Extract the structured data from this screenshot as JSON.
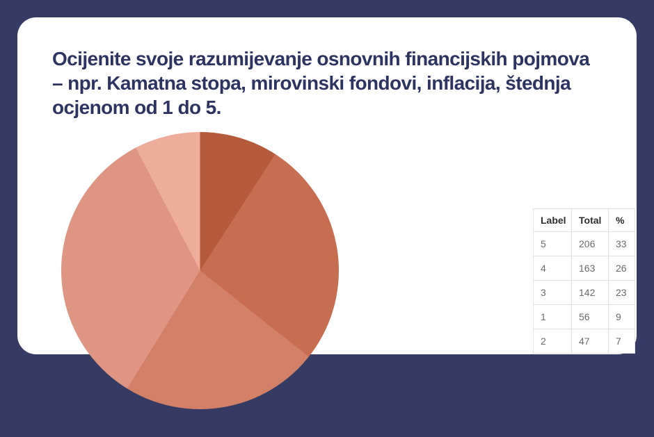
{
  "colors": {
    "background": "#353b63",
    "card": "#ffffff",
    "title_text": "#2d3462",
    "table_border": "#e2e2e2",
    "table_header_text": "#2e2e2e",
    "table_cell_text": "#6a6a6a"
  },
  "card": {
    "title": "Ocijenite svoje razumijevanje osnovnih financijskih pojmova – npr. Kamatna stopa, mirovinski fondovi, inflacija, štednja ocjenom od 1 do 5.",
    "title_lines": [
      "Ocijenite svoje razumijevanje osnovnih financijskih pojmova",
      "– npr. Kamatna stopa, mirovinski fondovi, inflacija, štednja",
      "ocjenom od 1 do 5."
    ]
  },
  "chart_data": {
    "type": "pie",
    "title": "Ocijenite svoje razumijevanje osnovnih financijskih pojmova – npr. Kamatna stopa, mirovinski fondovi, inflacija, štednja ocjenom od 1 do 5.",
    "start_angle_deg": 0,
    "direction": "clockwise",
    "legend_position": "right-table",
    "slices": [
      {
        "label": "1",
        "total": 56,
        "pct": 9,
        "color": "#b65a3c"
      },
      {
        "label": "4",
        "total": 163,
        "pct": 26,
        "color": "#c76d51"
      },
      {
        "label": "3",
        "total": 142,
        "pct": 23,
        "color": "#d28168"
      },
      {
        "label": "5",
        "total": 206,
        "pct": 33,
        "color": "#df9583"
      },
      {
        "label": "2",
        "total": 47,
        "pct": 7,
        "color": "#edad9a"
      }
    ]
  },
  "table": {
    "headers": [
      "Label",
      "Total",
      "%"
    ],
    "rows": [
      [
        "5",
        "206",
        "33"
      ],
      [
        "4",
        "163",
        "26"
      ],
      [
        "3",
        "142",
        "23"
      ],
      [
        "1",
        "56",
        "9"
      ],
      [
        "2",
        "47",
        "7"
      ]
    ]
  }
}
